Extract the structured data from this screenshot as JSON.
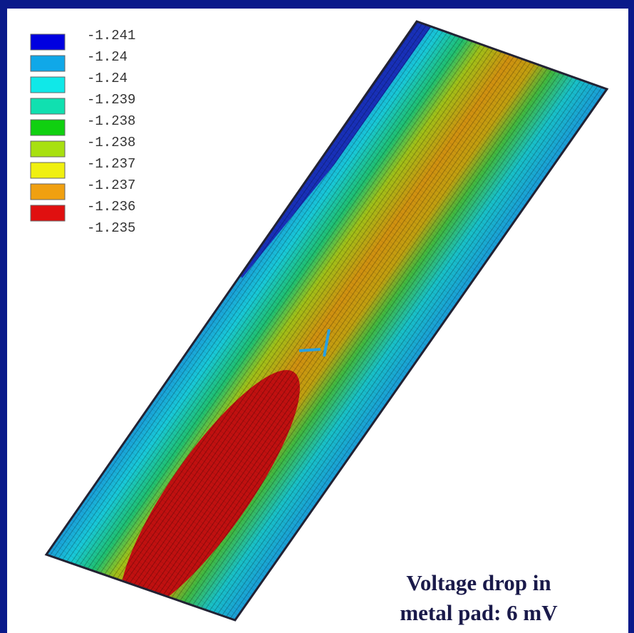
{
  "legend": {
    "colors": [
      "#0000e0",
      "#10a8e8",
      "#10e8e8",
      "#10e0b0",
      "#10d010",
      "#a8e010",
      "#f0f010",
      "#f0a010",
      "#e01010"
    ],
    "labels": [
      "-1.241",
      "-1.24",
      "-1.24",
      "-1.239",
      "-1.238",
      "-1.238",
      "-1.237",
      "-1.237",
      "-1.236",
      "-1.235"
    ]
  },
  "caption": {
    "lines": [
      "Voltage drop in",
      "metal pad: 6 mV"
    ]
  }
}
